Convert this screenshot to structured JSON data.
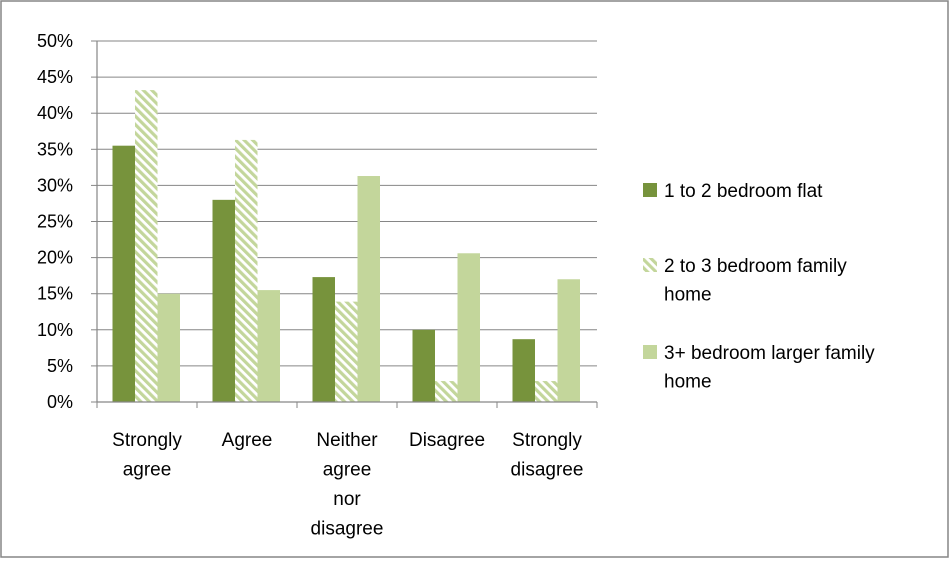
{
  "chart_data": {
    "type": "bar",
    "categories": [
      [
        "Strongly",
        "agree"
      ],
      [
        "Agree"
      ],
      [
        "Neither",
        "agree",
        "nor",
        "disagree"
      ],
      [
        "Disagree"
      ],
      [
        "Strongly",
        "disagree"
      ]
    ],
    "y_ticks": [
      "0%",
      "5%",
      "10%",
      "15%",
      "20%",
      "25%",
      "30%",
      "35%",
      "40%",
      "45%",
      "50%"
    ],
    "ylim": [
      0,
      50
    ],
    "grid": true,
    "legend_position": "right",
    "series": [
      {
        "name": "1 to 2 bedroom flat",
        "legend_lines": [
          "1 to 2 bedroom flat"
        ],
        "values": [
          35.5,
          28.0,
          17.3,
          10.0,
          8.7
        ],
        "color": "#77933c",
        "pattern": "solid"
      },
      {
        "name": "2 to 3 bedroom family home",
        "legend_lines": [
          "2 to 3 bedroom family",
          "home"
        ],
        "values": [
          43.2,
          36.3,
          13.9,
          2.9,
          2.9
        ],
        "color": "#c3d69b",
        "pattern": "diagonal-stripes"
      },
      {
        "name": "3+ bedroom larger family home",
        "legend_lines": [
          "3+ bedroom larger family",
          "home"
        ],
        "values": [
          15.0,
          15.5,
          31.3,
          20.6,
          17.0
        ],
        "color": "#c3d69b",
        "pattern": "solid"
      }
    ],
    "colors": {
      "grid": "#868686",
      "axis": "#868686",
      "frame": "#868686"
    }
  }
}
